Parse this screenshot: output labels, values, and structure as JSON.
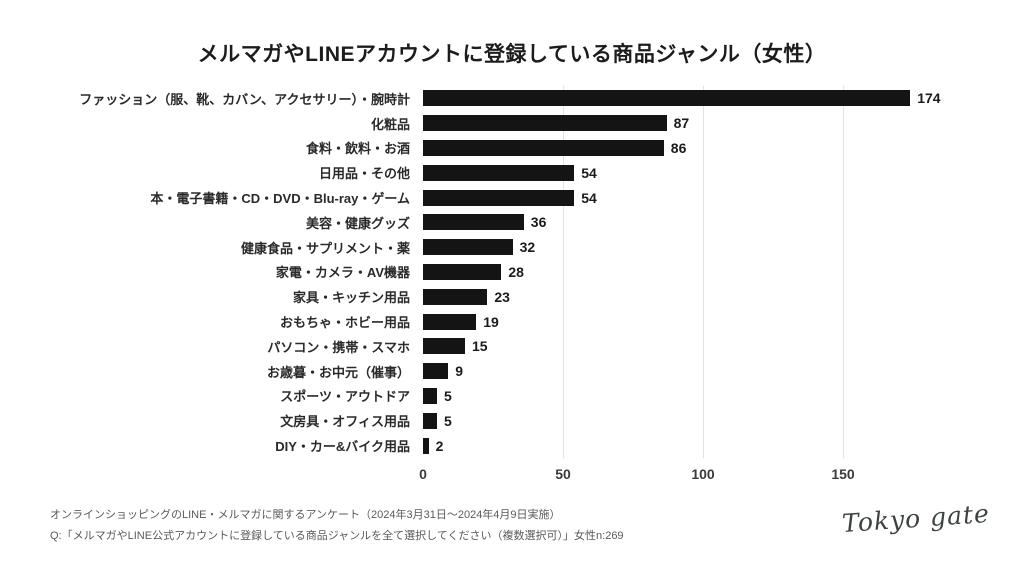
{
  "title": "メルマガやLINEアカウントに登録している商品ジャンル（女性）",
  "chart_data": {
    "type": "bar",
    "orientation": "horizontal",
    "title": "メルマガやLINEアカウントに登録している商品ジャンル（女性）",
    "categories": [
      "ファッション（服、靴、カバン、アクセサリー）・腕時計",
      "化粧品",
      "食料・飲料・お酒",
      "日用品・その他",
      "本・電子書籍・CD・DVD・Blu-ray・ゲーム",
      "美容・健康グッズ",
      "健康食品・サプリメント・薬",
      "家電・カメラ・AV機器",
      "家具・キッチン用品",
      "おもちゃ・ホビー用品",
      "パソコン・携帯・スマホ",
      "お歳暮・お中元（催事）",
      "スポーツ・アウトドア",
      "文房具・オフィス用品",
      "DIY・カー&バイク用品"
    ],
    "values": [
      174,
      87,
      86,
      54,
      54,
      36,
      32,
      28,
      23,
      19,
      15,
      9,
      5,
      5,
      2
    ],
    "xlabel": "",
    "ylabel": "",
    "xlim": [
      0,
      200
    ],
    "xticks": [
      0,
      50,
      100,
      150
    ],
    "grid": "vertical-only",
    "bar_color": "#141414",
    "data_labels": true,
    "legend": "none"
  },
  "footer": {
    "line1": "オンラインショッピングのLINE・メルマガに関するアンケート（2024年3月31日〜2024年4月9日実施）",
    "line2": "Q:「メルマガやLINE公式アカウントに登録している商品ジャンルを全て選択してください（複数選択可）」女性n:269",
    "logo": "Tokyo gate"
  }
}
